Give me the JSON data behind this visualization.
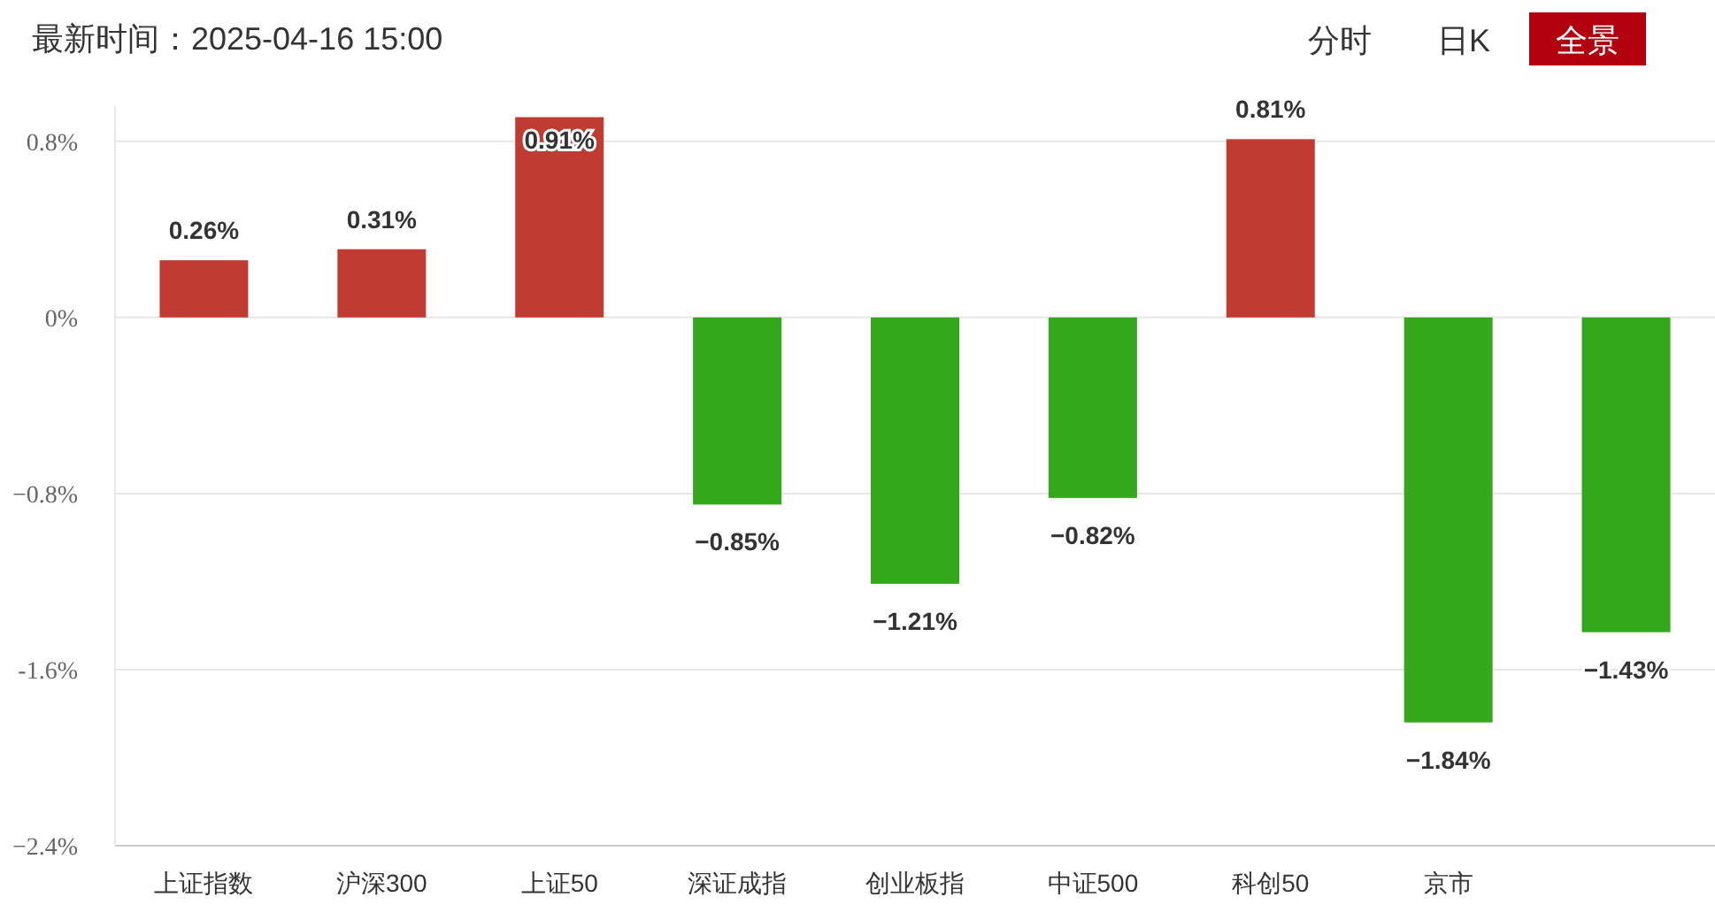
{
  "chart_data": {
    "type": "bar",
    "title": "最新时间：2025-04-16 15:00",
    "annotations": [
      "分时",
      "日K",
      "全景"
    ],
    "categories": [
      "上证指数",
      "沪深300",
      "上证50",
      "深证成指",
      "创业板指",
      "中证500",
      "科创50",
      "京市",
      null
    ],
    "values": [
      0.26,
      0.31,
      0.91,
      -0.85,
      -1.21,
      -0.82,
      0.81,
      -1.84,
      -1.43
    ],
    "colors": [
      "#c23b32",
      "#c23b32",
      "#c23b32",
      "#33a81a",
      "#33a81a",
      "#33a81a",
      "#c23b32",
      "#33a81a",
      "#33a81a"
    ],
    "value_labels": [
      "0.26%",
      "0.31%",
      "0.91%",
      "−0.85%",
      "−1.21%",
      "−0.82%",
      "0.81%",
      "−1.84%",
      "−1.43%"
    ],
    "ylim": [
      -2.4,
      0.96
    ],
    "yticks": [
      {
        "value": 0.8,
        "label": "0.8%"
      },
      {
        "value": 0,
        "label": "0%"
      },
      {
        "value": -0.8,
        "label": "−0.8%"
      },
      {
        "value": -1.6,
        "label": "-1.6%"
      },
      {
        "value": -2.4,
        "label": "−2.4%"
      }
    ],
    "grid": "y"
  }
}
